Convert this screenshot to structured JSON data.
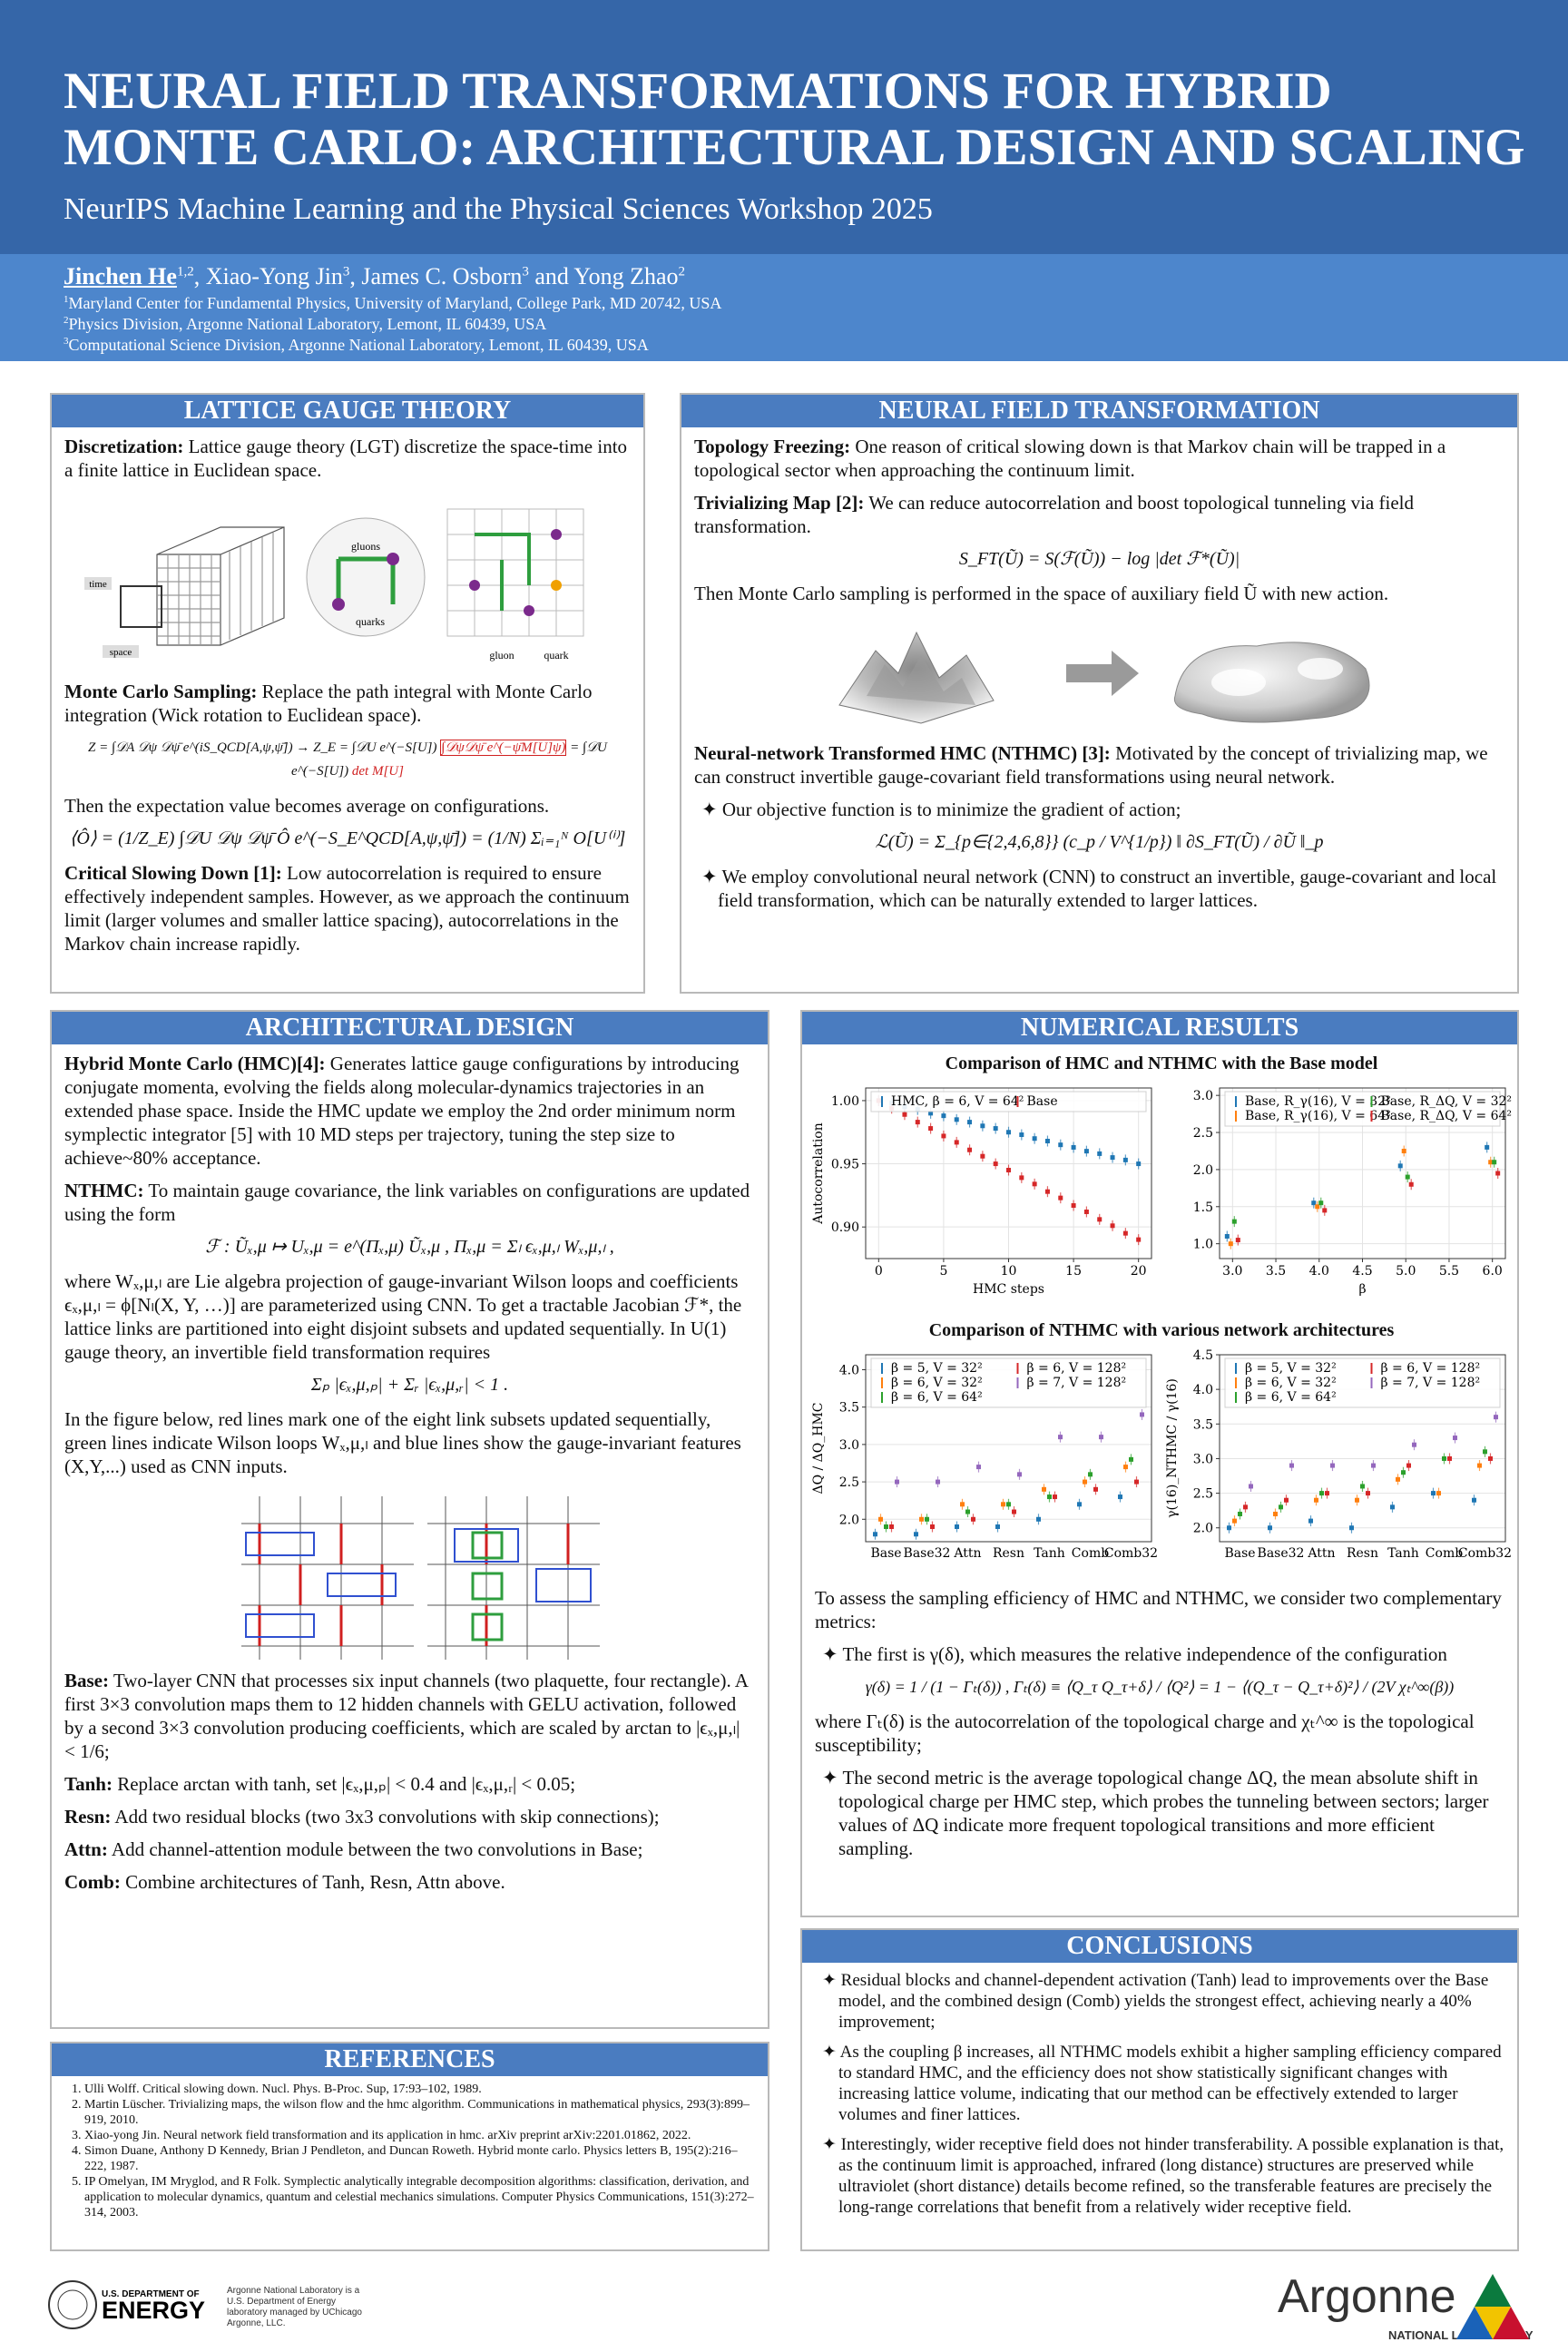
{
  "header": {
    "title_line1": "NEURAL FIELD TRANSFORMATIONS FOR HYBRID",
    "title_line2": "MONTE CARLO: ARCHITECTURAL DESIGN AND SCALING",
    "subtitle": "NeurIPS Machine Learning and the Physical Sciences Workshop 2025",
    "authors": [
      "Jinchen He",
      "1,2",
      ", Xiao-Yong Jin",
      "3",
      ", James C. Osborn",
      "3",
      " and Yong Zhao",
      "2"
    ],
    "affiliations": [
      [
        "1",
        "Maryland Center for Fundamental Physics, University of Maryland, College Park, MD 20742, USA"
      ],
      [
        "2",
        "Physics Division, Argonne National Laboratory, Lemont, IL 60439, USA"
      ],
      [
        "3",
        "Computational Science Division, Argonne National Laboratory, Lemont, IL 60439, USA"
      ]
    ]
  },
  "lattice": {
    "heading": "LATTICE GAUGE THEORY",
    "p1": {
      "label": "Discretization:",
      "text": " Lattice gauge theory (LGT) discretize the space-time into a finite lattice in Euclidean space."
    },
    "figure": {
      "time": "time",
      "space": "space",
      "gluons": "gluons",
      "quarks": "quarks",
      "gluon": "gluon",
      "quark": "quark"
    },
    "p2": {
      "label": "Monte Carlo Sampling:",
      "text": " Replace the path integral with Monte Carlo integration (Wick rotation to Euclidean space)."
    },
    "eq1a": "Z = ∫𝒟A 𝒟ψ 𝒟ψ̄ e^(iS_QCD[A,ψ,ψ̄]) → Z_E = ∫𝒟U e^(−S[U]) ",
    "eq1b": "∫𝒟ψ𝒟ψ̄ e^(−ψ̄M[U]ψ)",
    "eq1c": " = ∫𝒟U e^(−S[U]) ",
    "eq1d": "det M[U]",
    "p3": "Then the expectation value becomes average on configurations.",
    "eq2": "⟨Ô⟩ = (1/Z_E) ∫𝒟U 𝒟ψ 𝒟ψ̄ Ô e^(−S_E^QCD[A,ψ,ψ̄]) = (1/N) Σᵢ₌₁ᴺ O[U⁽ⁱ⁾]",
    "p4": {
      "label": "Critical Slowing Down [1]:",
      "text": " Low autocorrelation is required to ensure effectively independent samples. However, as we approach the continuum limit (larger volumes and smaller lattice spacing), autocorrelations in the Markov chain increase rapidly."
    }
  },
  "nft": {
    "heading": "NEURAL FIELD TRANSFORMATION",
    "p1": {
      "label": "Topology Freezing:",
      "text": " One reason of critical slowing down is that Markov chain will be trapped in a topological sector when approaching the continuum limit."
    },
    "p2": {
      "label": "Trivializing Map [2]:",
      "text": " We can reduce autocorrelation and boost topological tunneling via field transformation."
    },
    "eq1": "S_FT(Ũ) = S(ℱ(Ũ)) − log |det ℱ*(Ũ)|",
    "p3": "Then Monte Carlo sampling is performed in the space of auxiliary field Ũ with new action.",
    "p4": {
      "label": "Neural-network Transformed HMC (NTHMC) [3]:",
      "text": " Motivated by the concept of trivializing map, we can construct invertible gauge-covariant field transformations using neural network."
    },
    "b1": "✦ Our objective function is to minimize the gradient of action;",
    "eq2": "ℒ(Ũ) = Σ_{p∈{2,4,6,8}} (c_p / V^{1/p}) ‖ ∂S_FT(Ũ) / ∂Ũ ‖_p",
    "b2": "✦ We employ convolutional neural network (CNN) to construct an invertible, gauge-covariant and local field transformation, which can be naturally extended to larger lattices."
  },
  "arch": {
    "heading": "ARCHITECTURAL DESIGN",
    "p1": {
      "label": "Hybrid Monte Carlo (HMC)[4]:",
      "text": " Generates lattice gauge configurations by introducing conjugate momenta, evolving the fields along molecular-dynamics trajectories in an extended phase space. Inside the HMC update we employ the 2nd order minimum norm symplectic integrator [5] with 10 MD steps per trajectory, tuning the step size to achieve~80% acceptance."
    },
    "p2": {
      "label": "NTHMC:",
      "text": " To maintain gauge covariance, the link variables on configurations are updated using the form"
    },
    "eq1": "ℱ : Ũₓ,μ ↦ Uₓ,μ = e^(Πₓ,μ) Ũₓ,μ ,    Πₓ,μ = Σₗ ϵₓ,μ,ₗ Wₓ,μ,ₗ ,",
    "p3": "where Wₓ,μ,ₗ are Lie algebra projection of gauge-invariant Wilson loops and coefficients ϵₓ,μ,ₗ = ϕ[Nₗ(X, Y, …)] are parameterized using CNN. To get a tractable Jacobian ℱ*, the lattice links are partitioned into eight disjoint subsets and updated sequentially. In U(1) gauge theory, an invertible field transformation requires",
    "eq2": "Σₚ |ϵₓ,μ,ₚ| + Σᵣ |ϵₓ,μ,ᵣ| < 1 .",
    "p4": "In the figure below, red lines mark one of the eight link subsets updated sequentially, green lines indicate Wilson loops Wₓ,μ,ₗ and blue lines show the gauge-invariant features (X,Y,...) used as CNN inputs.",
    "items": [
      {
        "label": "Base:",
        "text": " Two-layer CNN that processes six input channels (two plaquette, four rectangle). A first 3×3 convolution maps them to 12 hidden channels with GELU activation, followed by a second 3×3 convolution producing coefficients, which are scaled by arctan to |ϵₓ,μ,ₗ| < 1/6;"
      },
      {
        "label": "Tanh:",
        "text": " Replace arctan with tanh, set |ϵₓ,μ,ₚ| < 0.4 and |ϵₓ,μ,ᵣ| < 0.05;"
      },
      {
        "label": "Resn:",
        "text": " Add two residual blocks (two 3x3 convolutions with skip connections);"
      },
      {
        "label": "Attn:",
        "text": " Add channel-attention module between the two convolutions in Base;"
      },
      {
        "label": "Comb:",
        "text": " Combine architectures of Tanh, Resn, Attn above."
      }
    ]
  },
  "references": {
    "heading": "REFERENCES",
    "items": [
      "Ulli Wolff. Critical slowing down. Nucl. Phys. B-Proc. Sup, 17:93–102, 1989.",
      "Martin Lüscher. Trivializing maps, the wilson flow and the hmc algorithm. Communications in mathematical physics, 293(3):899–919, 2010.",
      "Xiao-yong Jin. Neural network field transformation and its application in hmc. arXiv preprint arXiv:2201.01862, 2022.",
      "Simon Duane, Anthony D Kennedy, Brian J Pendleton, and Duncan Roweth. Hybrid monte carlo. Physics letters B, 195(2):216–222, 1987.",
      "IP Omelyan, IM Mryglod, and R Folk. Symplectic analytically integrable decomposition algorithms: classification, derivation, and application to molecular dynamics, quantum and celestial mechanics simulations. Computer Physics Communications, 151(3):272–314, 2003."
    ]
  },
  "results": {
    "heading": "NUMERICAL RESULTS",
    "fig1_title": "Comparison of HMC and NTHMC with the Base model",
    "fig2_title": "Comparison of NTHMC with various network architectures",
    "p1": "To assess the sampling efficiency of HMC and NTHMC, we consider two complementary metrics:",
    "b1": "✦ The first is γ(δ), which measures the relative independence of the configuration",
    "eq1": "γ(δ) = 1 / (1 − Γₜ(δ)) ,   Γₜ(δ) ≡ ⟨Q_τ Q_τ+δ⟩ / ⟨Q²⟩ = 1 − ⟨(Q_τ − Q_τ+δ)²⟩ / (2V χₜ^∞(β))",
    "p2": "where Γₜ(δ) is the autocorrelation of the topological charge and χₜ^∞ is the topological susceptibility;",
    "b2": "✦ The second metric is the average topological change ΔQ, the mean absolute shift in topological charge per HMC step, which probes the tunneling between sectors; larger values of ΔQ indicate more frequent topological transitions and more efficient sampling."
  },
  "conclusions": {
    "heading": "CONCLUSIONS",
    "items": [
      "✦ Residual blocks and channel-dependent activation (Tanh) lead to improvements over the Base model, and the combined design (Comb) yields the strongest effect, achieving nearly a 40% improvement;",
      "✦ As the coupling β increases, all NTHMC models exhibit a higher sampling efficiency compared to standard HMC, and the efficiency does not show statistically significant changes with increasing lattice volume, indicating that our method can be effectively extended to larger volumes and finer lattices.",
      "✦ Interestingly, wider receptive field does not hinder transferability. A possible explanation is that, as the continuum limit is approached, infrared (long distance) structures are preserved while ultraviolet (short distance) details become refined, so the transferable features are precisely the long-range correlations that benefit from a relatively wider receptive field."
    ]
  },
  "footer": {
    "doe_small": "U.S. DEPARTMENT OF",
    "doe_big": "ENERGY",
    "doe_note": "Argonne National Laboratory is a U.S. Department of Energy laboratory managed by UChicago Argonne, LLC.",
    "argonne": "Argonne",
    "argonne_sub": "NATIONAL LABORATORY"
  },
  "chart_data": [
    {
      "type": "scatter",
      "xlabel": "HMC steps",
      "ylabel": "Autocorrelation",
      "grid": true,
      "legend_ncol": 2,
      "x": [
        0,
        1,
        2,
        3,
        4,
        5,
        6,
        7,
        8,
        9,
        10,
        11,
        12,
        13,
        14,
        15,
        16,
        17,
        18,
        19,
        20
      ],
      "xlim": [
        -1,
        21
      ],
      "xticks": [
        0,
        5,
        10,
        15,
        20
      ],
      "ylim": [
        0.875,
        1.01
      ],
      "yticks": [
        {
          "value": 0.9,
          "label": "0.90"
        },
        {
          "value": 0.95,
          "label": "0.95"
        },
        {
          "value": 1.0,
          "label": "1.00"
        }
      ],
      "series": [
        {
          "name": "HMC, β = 6, V = 64²",
          "color": "#1f77b4",
          "values": [
            1.0,
            0.998,
            0.995,
            0.993,
            0.99,
            0.988,
            0.985,
            0.983,
            0.98,
            0.978,
            0.975,
            0.973,
            0.97,
            0.968,
            0.965,
            0.963,
            0.96,
            0.958,
            0.955,
            0.953,
            0.95
          ]
        },
        {
          "name": "Base",
          "color": "#d62728",
          "values": [
            1.0,
            0.994,
            0.989,
            0.983,
            0.978,
            0.972,
            0.967,
            0.961,
            0.956,
            0.95,
            0.945,
            0.939,
            0.934,
            0.928,
            0.923,
            0.917,
            0.912,
            0.906,
            0.901,
            0.895,
            0.89
          ]
        }
      ]
    },
    {
      "type": "scatter",
      "xlabel": "β",
      "grid": true,
      "legend_ncol": 2,
      "x": [
        3.0,
        4.0,
        5.0,
        6.0
      ],
      "xlim": [
        2.85,
        6.15
      ],
      "xticks": [
        {
          "value": 3,
          "label": "3.0"
        },
        3.5,
        {
          "value": 4,
          "label": "4.0"
        },
        4.5,
        {
          "value": 5,
          "label": "5.0"
        },
        5.5,
        {
          "value": 6,
          "label": "6.0"
        }
      ],
      "ylim": [
        0.8,
        3.1
      ],
      "yticks": [
        {
          "value": 1,
          "label": "1.0"
        },
        1.5,
        {
          "value": 2,
          "label": "2.0"
        },
        2.5,
        {
          "value": 3,
          "label": "3.0"
        }
      ],
      "series": [
        {
          "name": "Base, R_γ(16), V = 32²",
          "color": "#1f77b4",
          "values": [
            1.1,
            1.55,
            2.05,
            2.3
          ]
        },
        {
          "name": "Base, R_γ(16), V = 64²",
          "color": "#ff7f0e",
          "values": [
            1.0,
            1.5,
            2.25,
            2.1
          ]
        },
        {
          "name": "Base, R_ΔQ, V = 32²",
          "color": "#2ca02c",
          "values": [
            1.3,
            1.55,
            1.9,
            2.1
          ]
        },
        {
          "name": "Base, R_ΔQ, V = 64²",
          "color": "#d62728",
          "values": [
            1.05,
            1.45,
            1.8,
            1.95
          ]
        }
      ]
    },
    {
      "type": "scatter",
      "ylabel": "ΔQ / ΔQ_HMC",
      "grid": true,
      "legend_ncol": 2,
      "categories": [
        "Base",
        "Base32",
        "Attn",
        "Resn",
        "Tanh",
        "Comb",
        "Comb32"
      ],
      "ylim": [
        1.7,
        4.2
      ],
      "yticks": [
        {
          "value": 2,
          "label": "2.0"
        },
        2.5,
        {
          "value": 3,
          "label": "3.0"
        },
        3.5,
        {
          "value": 4,
          "label": "4.0"
        }
      ],
      "series": [
        {
          "name": "β = 5, V = 32²",
          "color": "#1f77b4",
          "values": [
            1.8,
            1.8,
            1.9,
            1.9,
            2.0,
            2.2,
            2.3
          ]
        },
        {
          "name": "β = 6, V = 32²",
          "color": "#ff7f0e",
          "values": [
            2.0,
            2.0,
            2.2,
            2.2,
            2.4,
            2.5,
            2.7
          ]
        },
        {
          "name": "β = 6, V = 64²",
          "color": "#2ca02c",
          "values": [
            1.9,
            2.0,
            2.1,
            2.2,
            2.3,
            2.6,
            2.8
          ]
        },
        {
          "name": "β = 6, V = 128²",
          "color": "#d62728",
          "values": [
            1.9,
            1.9,
            2.0,
            2.1,
            2.3,
            2.4,
            2.5
          ]
        },
        {
          "name": "β = 7, V = 128²",
          "color": "#9467bd",
          "values": [
            2.5,
            2.5,
            2.7,
            2.6,
            3.1,
            3.1,
            3.4
          ]
        }
      ]
    },
    {
      "type": "scatter",
      "ylabel": "γ(16)_NTHMC / γ(16)",
      "grid": true,
      "legend_ncol": 2,
      "categories": [
        "Base",
        "Base32",
        "Attn",
        "Resn",
        "Tanh",
        "Comb",
        "Comb32"
      ],
      "ylim": [
        1.8,
        4.5
      ],
      "yticks": [
        {
          "value": 2,
          "label": "2.0"
        },
        2.5,
        {
          "value": 3,
          "label": "3.0"
        },
        3.5,
        {
          "value": 4,
          "label": "4.0"
        },
        4.5
      ],
      "series": [
        {
          "name": "β = 5, V = 32²",
          "color": "#1f77b4",
          "values": [
            2.0,
            2.0,
            2.1,
            2.0,
            2.3,
            2.5,
            2.4
          ]
        },
        {
          "name": "β = 6, V = 32²",
          "color": "#ff7f0e",
          "values": [
            2.1,
            2.2,
            2.4,
            2.4,
            2.7,
            2.5,
            2.9
          ]
        },
        {
          "name": "β = 6, V = 64²",
          "color": "#2ca02c",
          "values": [
            2.2,
            2.3,
            2.5,
            2.6,
            2.8,
            3.0,
            3.1
          ]
        },
        {
          "name": "β = 6, V = 128²",
          "color": "#d62728",
          "values": [
            2.3,
            2.4,
            2.5,
            2.5,
            2.9,
            3.0,
            3.0
          ]
        },
        {
          "name": "β = 7, V = 128²",
          "color": "#9467bd",
          "values": [
            2.6,
            2.9,
            2.9,
            2.9,
            3.2,
            3.3,
            3.6
          ]
        }
      ]
    }
  ]
}
